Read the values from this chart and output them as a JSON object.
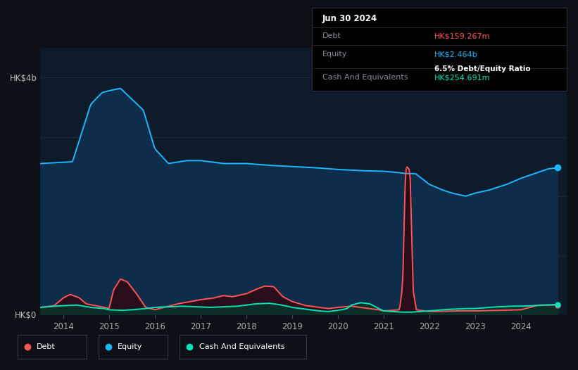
{
  "bg_color": "#0d1117",
  "plot_bg_color": "#0d1b2a",
  "equity_color": "#1ab8ff",
  "debt_color": "#ff5555",
  "cash_color": "#00e5b8",
  "equity_fill": "#0d2d4a",
  "debt_fill": "#2a0d1a",
  "cash_fill": "#0d2e28",
  "ylabel_top": "HK$4b",
  "ylabel_bottom": "HK$0",
  "x_labels": [
    "2014",
    "2015",
    "2016",
    "2017",
    "2018",
    "2019",
    "2020",
    "2021",
    "2022",
    "2023",
    "2024"
  ],
  "tooltip_date": "Jun 30 2024",
  "tooltip_debt_label": "Debt",
  "tooltip_debt_value": "HK$159.267m",
  "tooltip_equity_label": "Equity",
  "tooltip_equity_value": "HK$2.464b",
  "tooltip_ratio": "6.5% Debt/Equity Ratio",
  "tooltip_cash_label": "Cash And Equivalents",
  "tooltip_cash_value": "HK$254.691m",
  "legend_items": [
    "Debt",
    "Equity",
    "Cash And Equivalents"
  ],
  "ylim_max": 4.5
}
